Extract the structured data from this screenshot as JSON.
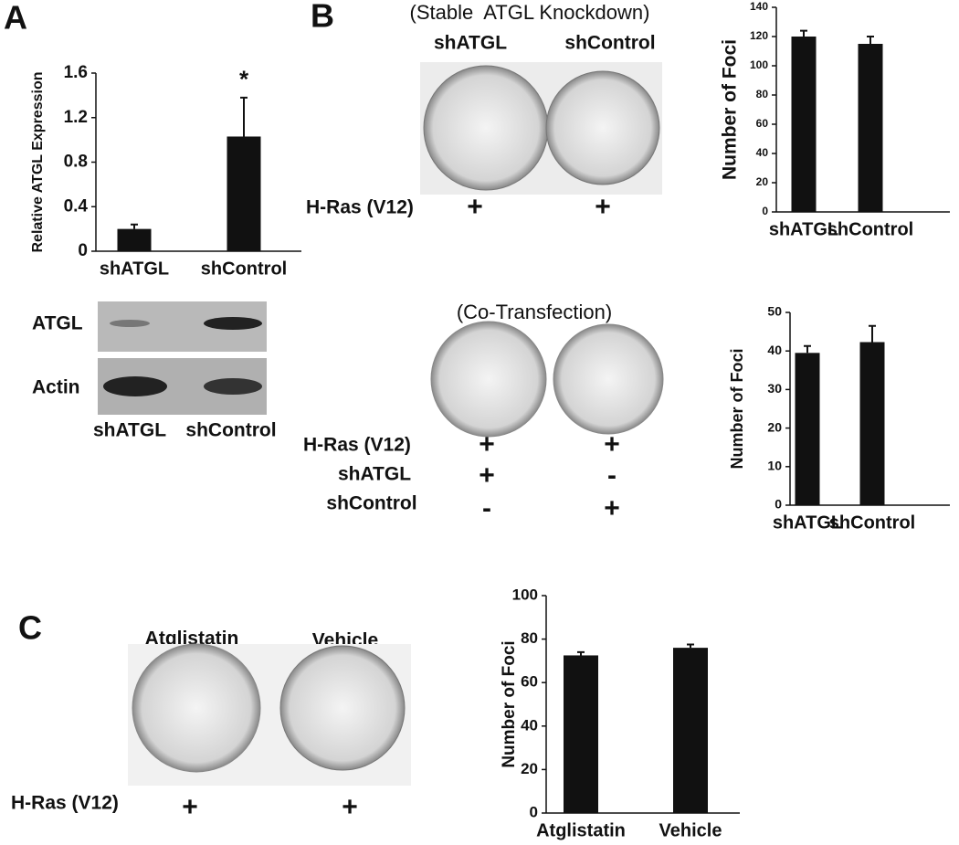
{
  "chart_data": [
    {
      "type": "bar",
      "ylabel": "Relative ATGL Expression",
      "categories": [
        "shATGL",
        "shControl"
      ],
      "values": [
        0.2,
        1.03
      ],
      "errors": [
        0.04,
        0.35
      ],
      "color": "#111111",
      "ylim": [
        0,
        1.6
      ],
      "yticks": [
        0,
        0.4,
        0.8,
        1.2,
        1.6
      ],
      "annotations": [
        null,
        "*"
      ]
    },
    {
      "type": "bar",
      "ylabel": "Number of Foci",
      "categories": [
        "shATGL",
        "shControl"
      ],
      "values": [
        120,
        115
      ],
      "errors": [
        4,
        5
      ],
      "color": "#111111",
      "ylim": [
        0,
        140
      ],
      "yticks": [
        0,
        20,
        40,
        60,
        80,
        100,
        120,
        140
      ]
    },
    {
      "type": "bar",
      "ylabel": "Number of Foci",
      "categories": [
        "shATGL",
        "shControl"
      ],
      "values": [
        39.5,
        42.3
      ],
      "errors": [
        1.8,
        4.2
      ],
      "color": "#111111",
      "ylim": [
        0,
        50
      ],
      "yticks": [
        0,
        10,
        20,
        30,
        40,
        50
      ]
    },
    {
      "type": "bar",
      "ylabel": "Number of Foci",
      "categories": [
        "Atglistatin",
        "Vehicle"
      ],
      "values": [
        72.5,
        76
      ],
      "errors": [
        1.5,
        1.5
      ],
      "color": "#111111",
      "ylim": [
        0,
        100
      ],
      "yticks": [
        0,
        20,
        40,
        60,
        80,
        100
      ]
    }
  ],
  "panels": {
    "A": {
      "label": "A",
      "blot": {
        "rows": [
          "ATGL",
          "Actin"
        ],
        "lanes": [
          "shATGL",
          "shControl"
        ]
      }
    },
    "B": {
      "label": "B",
      "top": {
        "subtitle": "(Stable  ATGL Knockdown)",
        "plates": [
          "shATGL",
          "shControl"
        ],
        "rows": [
          {
            "label": "H-Ras (V12)",
            "marks": [
              "+",
              "+"
            ]
          }
        ]
      },
      "bottom": {
        "subtitle": "(Co-Transfection)",
        "rows": [
          {
            "label": "H-Ras (V12)",
            "marks": [
              "+",
              "+"
            ]
          },
          {
            "label": "shATGL",
            "marks": [
              "+",
              "-"
            ]
          },
          {
            "label": "shControl",
            "marks": [
              "-",
              "+"
            ]
          }
        ]
      }
    },
    "C": {
      "label": "C",
      "plates": [
        "Atglistatin",
        "Vehicle"
      ],
      "rows": [
        {
          "label": "H-Ras (V12)",
          "marks": [
            "+",
            "+"
          ]
        }
      ]
    }
  }
}
